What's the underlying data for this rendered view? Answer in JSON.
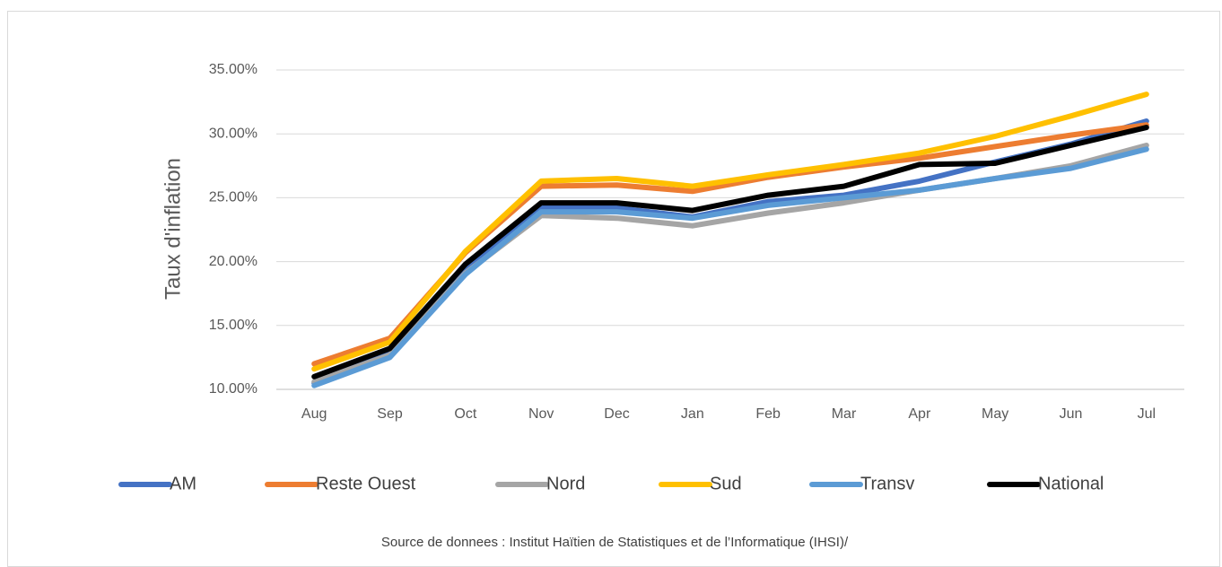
{
  "chart_data": {
    "type": "line",
    "title": "",
    "xlabel": "",
    "ylabel": "Taux d'inflation",
    "categories": [
      "Aug",
      "Sep",
      "Oct",
      "Nov",
      "Dec",
      "Jan",
      "Feb",
      "Mar",
      "Apr",
      "May",
      "Jun",
      "Jul"
    ],
    "y_ticks": [
      "10.00%",
      "15.00%",
      "20.00%",
      "25.00%",
      "30.00%",
      "35.00%"
    ],
    "ylim": [
      10,
      35
    ],
    "grid": true,
    "legend_position": "bottom",
    "series": [
      {
        "name": "AM",
        "color": "#4472C4",
        "values": [
          10.5,
          12.9,
          19.4,
          24.3,
          24.2,
          23.5,
          24.7,
          25.2,
          26.3,
          27.8,
          29.2,
          31.0
        ]
      },
      {
        "name": "Reste Ouest",
        "color": "#ED7D31",
        "values": [
          12.0,
          14.0,
          20.7,
          25.9,
          26.0,
          25.5,
          26.6,
          27.4,
          28.1,
          29.0,
          29.9,
          30.7
        ]
      },
      {
        "name": "Nord",
        "color": "#A5A5A5",
        "values": [
          10.6,
          12.7,
          19.1,
          23.6,
          23.4,
          22.8,
          23.8,
          24.6,
          25.6,
          26.5,
          27.5,
          29.1
        ]
      },
      {
        "name": "Sud",
        "color": "#FFC000",
        "values": [
          11.6,
          13.7,
          20.8,
          26.3,
          26.5,
          25.9,
          26.8,
          27.6,
          28.5,
          29.8,
          31.4,
          33.1
        ]
      },
      {
        "name": "Transv",
        "color": "#5B9BD5",
        "values": [
          10.3,
          12.5,
          19.0,
          23.9,
          23.9,
          23.4,
          24.4,
          25.0,
          25.6,
          26.5,
          27.3,
          28.8
        ]
      },
      {
        "name": "National",
        "color": "#000000",
        "values": [
          11.0,
          13.2,
          19.8,
          24.6,
          24.6,
          24.0,
          25.2,
          25.9,
          27.6,
          27.7,
          29.1,
          30.5
        ]
      }
    ],
    "source": "Source de donnees : Institut Haïtien de Statistiques et de l’Informatique (IHSI)/"
  }
}
